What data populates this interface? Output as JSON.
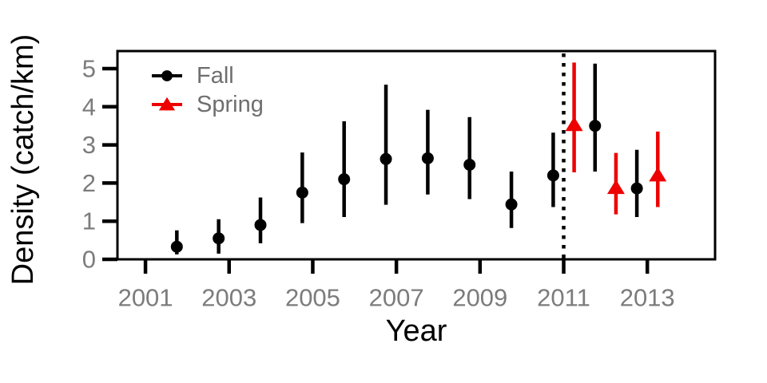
{
  "colors": {
    "fall_series": "#000000",
    "spring_series": "#ee0000",
    "tick_label_gray": "#7c7c7c",
    "legend_label_gray": "#6e6e6e",
    "axis_title_black": "#000000"
  },
  "chart_data": {
    "type": "scatter",
    "title": "",
    "xlabel": "Year",
    "ylabel": "Density (catch/km)",
    "xlim": [
      2000.33,
      2014.62
    ],
    "ylim": [
      0,
      5.46
    ],
    "xticks": [
      2001,
      2003,
      2005,
      2007,
      2009,
      2011,
      2013
    ],
    "yticks": [
      0,
      1,
      2,
      3,
      4,
      5
    ],
    "grid": false,
    "legend_position": "top-left-inside",
    "error_bars": true,
    "vline": {
      "x": 2011,
      "style": "dotted",
      "color": "#000000"
    },
    "series": [
      {
        "name": "Fall",
        "marker": "circle",
        "color": "#000000",
        "points": [
          {
            "x": 2001.75,
            "y": 0.33,
            "lo": 0.13,
            "hi": 0.76
          },
          {
            "x": 2002.75,
            "y": 0.55,
            "lo": 0.15,
            "hi": 1.05
          },
          {
            "x": 2003.75,
            "y": 0.9,
            "lo": 0.42,
            "hi": 1.62
          },
          {
            "x": 2004.75,
            "y": 1.75,
            "lo": 0.95,
            "hi": 2.8
          },
          {
            "x": 2005.75,
            "y": 2.1,
            "lo": 1.11,
            "hi": 3.62
          },
          {
            "x": 2006.75,
            "y": 2.63,
            "lo": 1.43,
            "hi": 4.58
          },
          {
            "x": 2007.75,
            "y": 2.65,
            "lo": 1.7,
            "hi": 3.92
          },
          {
            "x": 2008.75,
            "y": 2.48,
            "lo": 1.58,
            "hi": 3.73
          },
          {
            "x": 2009.75,
            "y": 1.44,
            "lo": 0.82,
            "hi": 2.3
          },
          {
            "x": 2010.75,
            "y": 2.2,
            "lo": 1.37,
            "hi": 3.32
          },
          {
            "x": 2011.75,
            "y": 3.5,
            "lo": 2.3,
            "hi": 5.13
          },
          {
            "x": 2012.75,
            "y": 1.86,
            "lo": 1.11,
            "hi": 2.87
          }
        ]
      },
      {
        "name": "Spring",
        "marker": "triangle",
        "color": "#ee0000",
        "points": [
          {
            "x": 2011.25,
            "y": 3.53,
            "lo": 2.28,
            "hi": 5.16
          },
          {
            "x": 2012.25,
            "y": 1.88,
            "lo": 1.18,
            "hi": 2.79
          },
          {
            "x": 2013.25,
            "y": 2.21,
            "lo": 1.37,
            "hi": 3.35
          }
        ]
      }
    ]
  }
}
